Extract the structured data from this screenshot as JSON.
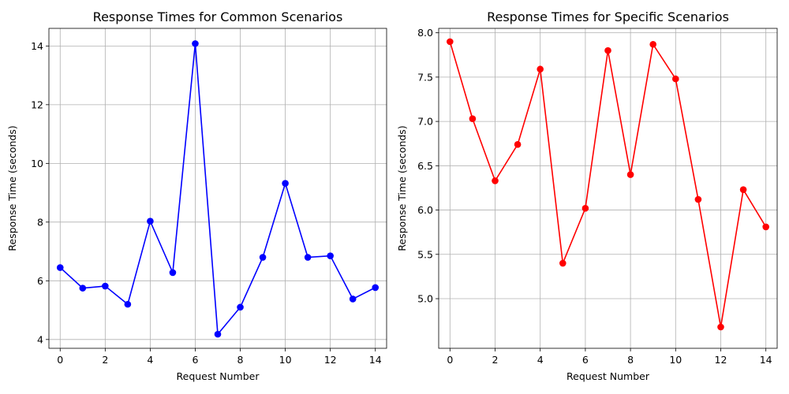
{
  "chart_data": [
    {
      "type": "line",
      "title": "Response Times for Common Scenarios",
      "xlabel": "Request Number",
      "ylabel": "Response Time (seconds)",
      "grid": true,
      "xlim": [
        -0.5,
        14.5
      ],
      "ylim": [
        3.7,
        14.6
      ],
      "xticks": [
        0,
        2,
        4,
        6,
        8,
        10,
        12,
        14
      ],
      "yticks": [
        4,
        6,
        8,
        10,
        12,
        14
      ],
      "ytick_labels": [
        "4",
        "6",
        "8",
        "10",
        "12",
        "14"
      ],
      "series": [
        {
          "color": "#0000ff",
          "x": [
            0,
            1,
            2,
            3,
            4,
            5,
            6,
            7,
            8,
            9,
            10,
            11,
            12,
            13,
            14
          ],
          "values": [
            6.45,
            5.75,
            5.82,
            5.2,
            8.03,
            6.28,
            14.08,
            4.18,
            5.1,
            6.8,
            9.32,
            6.8,
            6.85,
            5.38,
            5.77
          ]
        }
      ]
    },
    {
      "type": "line",
      "title": "Response Times for Specific Scenarios",
      "xlabel": "Request Number",
      "ylabel": "Response Time (seconds)",
      "grid": true,
      "xlim": [
        -0.5,
        14.5
      ],
      "ylim": [
        4.44,
        8.05
      ],
      "xticks": [
        0,
        2,
        4,
        6,
        8,
        10,
        12,
        14
      ],
      "yticks": [
        5.0,
        5.5,
        6.0,
        6.5,
        7.0,
        7.5,
        8.0
      ],
      "ytick_labels": [
        "5.0",
        "5.5",
        "6.0",
        "6.5",
        "7.0",
        "7.5",
        "8.0"
      ],
      "series": [
        {
          "color": "#ff0000",
          "x": [
            0,
            1,
            2,
            3,
            4,
            5,
            6,
            7,
            8,
            9,
            10,
            11,
            12,
            13,
            14
          ],
          "values": [
            7.9,
            7.03,
            6.33,
            6.74,
            7.59,
            5.4,
            6.02,
            7.8,
            6.4,
            7.87,
            7.48,
            6.12,
            4.68,
            6.23,
            5.81
          ]
        }
      ]
    }
  ]
}
